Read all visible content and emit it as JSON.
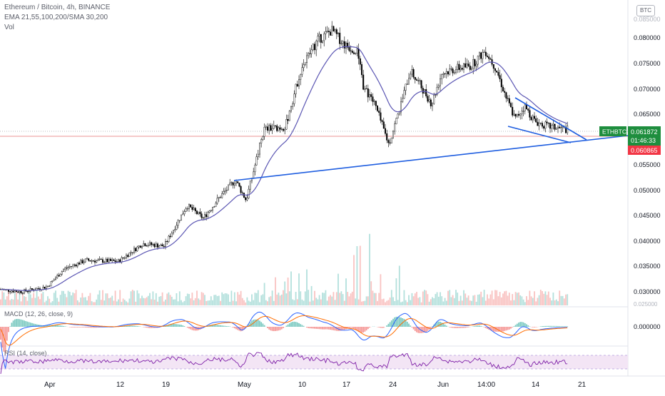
{
  "legend": {
    "title": "Ethereum / Bitcoin, 4h, BINANCE",
    "indicators": "EMA 21,55,100,200/SMA 30,200",
    "volume": "Vol"
  },
  "currency_badge": "BTC",
  "price_axis": {
    "ticks": [
      "0.080000",
      "0.075000",
      "0.070000",
      "0.065000",
      "0.055000",
      "0.050000",
      "0.045000",
      "0.040000",
      "0.035000",
      "0.030000"
    ],
    "top_label": "0.085000",
    "volume_tick": "0.025000"
  },
  "price_tags": {
    "symbol": "ETHBTC",
    "last": "0.061872",
    "countdown": "01:46:33",
    "support": "0.060865"
  },
  "macd": {
    "label": "MACD (12, 26, close, 9)",
    "zero_tick": "0.000000"
  },
  "rsi": {
    "label": "RSI (14, close)"
  },
  "time_axis": {
    "labels": [
      "Apr",
      "12",
      "19",
      "May",
      "10",
      "17",
      "24",
      "Jun",
      "14:00",
      "14",
      "21"
    ]
  },
  "colors": {
    "up": "#26a69a",
    "down": "#ef5350",
    "candle": "#000000",
    "ema": "#5b56b3",
    "trendline": "#1f5ee0",
    "tag_green": "#1e8e3e",
    "tag_red": "#f23645",
    "macd_line": "#2962ff",
    "signal_line": "#ff6d00",
    "rsi_line": "#7e1fa7",
    "rsi_band": "#f3e5f5"
  },
  "chart_data": {
    "type": "candlestick",
    "title": "Ethereum / Bitcoin, 4h, BINANCE",
    "x_range": [
      "Apr",
      "21"
    ],
    "ylim": [
      0.029,
      0.083
    ],
    "series": [
      {
        "name": "Price",
        "x": [
          "Apr",
          "12",
          "19",
          "May",
          "10",
          "17",
          "24",
          "Jun",
          "14:00",
          "14",
          "21"
        ],
        "values": [
          0.031,
          0.036,
          0.039,
          0.052,
          0.074,
          0.079,
          0.058,
          0.073,
          0.077,
          0.064,
          0.0619
        ]
      }
    ],
    "last_price": 0.061872,
    "support_level": 0.060865,
    "grid": false
  }
}
